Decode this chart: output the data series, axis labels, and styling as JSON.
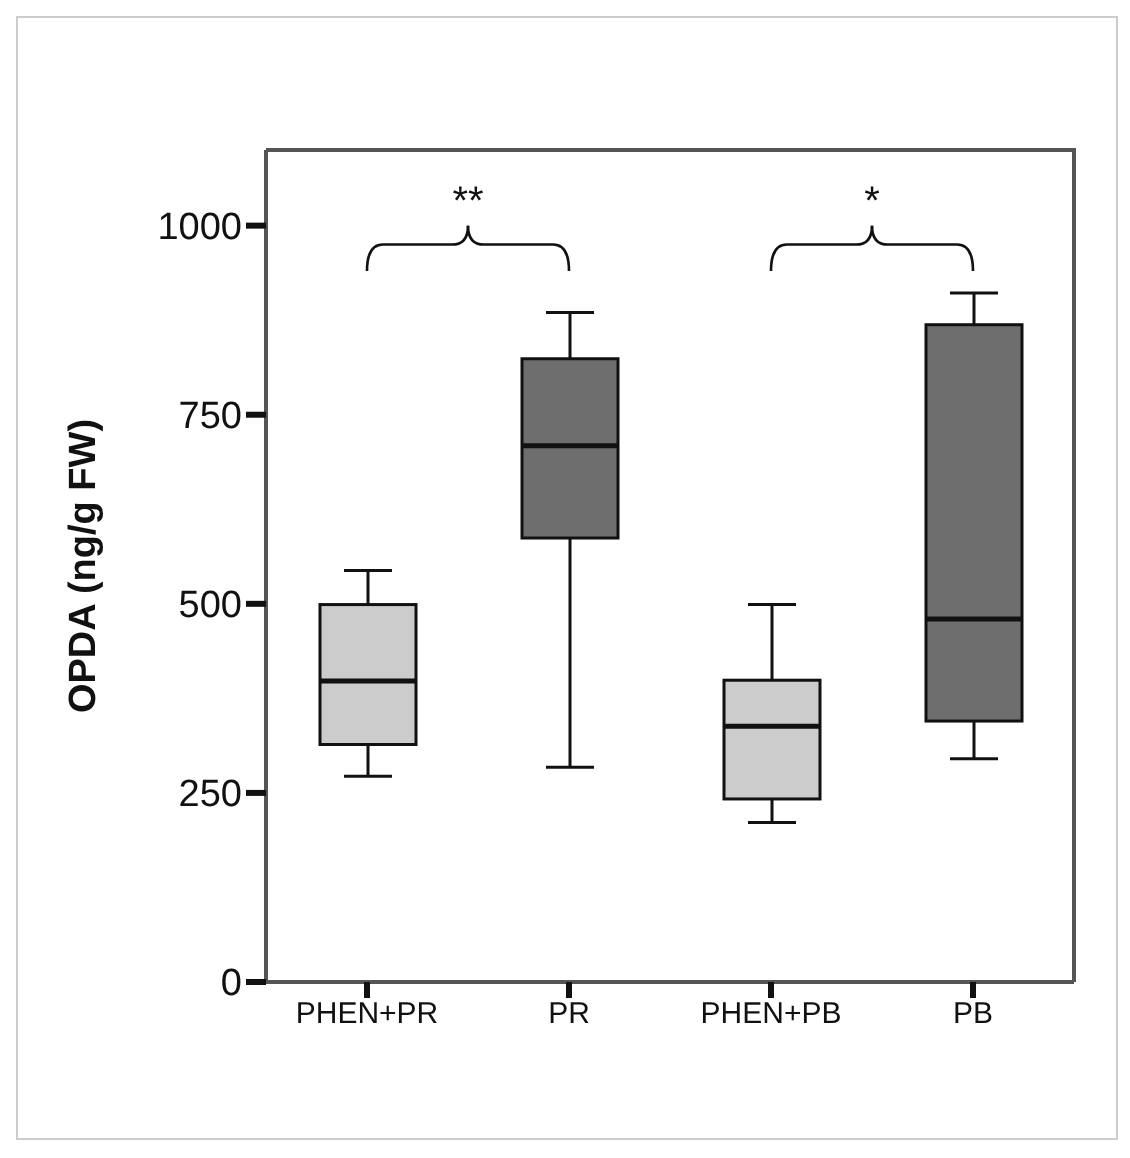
{
  "chart_data": {
    "type": "box",
    "ylabel": "OPDA (ng/g FW)",
    "categories": [
      "PHEN+PR",
      "PR",
      "PHEN+PB",
      "PB"
    ],
    "boxes": [
      {
        "low": 272,
        "q1": 314,
        "median": 398,
        "q3": 499,
        "high": 544
      },
      {
        "low": 284,
        "q1": 587,
        "median": 709,
        "q3": 824,
        "high": 885
      },
      {
        "low": 211,
        "q1": 242,
        "median": 338,
        "q3": 399,
        "high": 499
      },
      {
        "low": 295,
        "q1": 345,
        "median": 480,
        "q3": 869,
        "high": 911
      }
    ],
    "colors": [
      "#cccccc",
      "#6e6e6e",
      "#cccccc",
      "#6e6e6e"
    ],
    "ylim": [
      0,
      1100
    ],
    "yticks": [
      0,
      250,
      500,
      750,
      1000
    ],
    "annotations": [
      "**",
      "*"
    ]
  }
}
